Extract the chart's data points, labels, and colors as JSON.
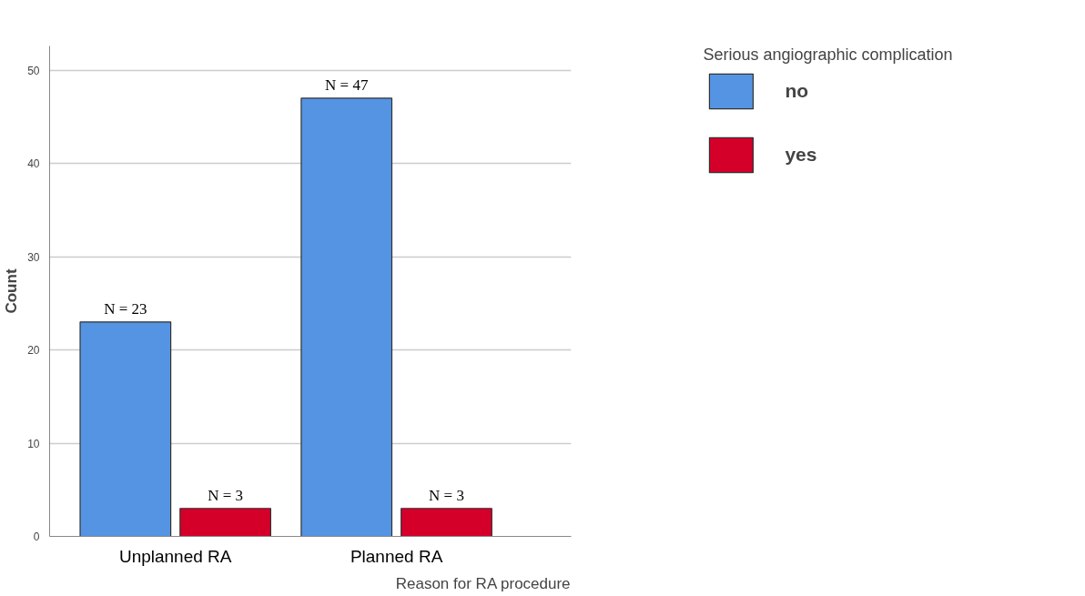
{
  "chart_data": {
    "type": "bar",
    "xlabel": "Reason for RA procedure",
    "ylabel": "Count",
    "legend_title": "Serious angiographic complication",
    "categories": [
      "Unplanned RA",
      "Planned RA"
    ],
    "series": [
      {
        "name": "no",
        "color": "#5494e3",
        "values": [
          23,
          47
        ],
        "value_labels": [
          "N = 23",
          "N = 47"
        ]
      },
      {
        "name": "yes",
        "color": "#d4002a",
        "values": [
          3,
          3
        ],
        "value_labels": [
          "N = 3",
          "N = 3"
        ]
      }
    ],
    "ylim": [
      0,
      52.6
    ],
    "yticks": [
      0,
      10,
      20,
      30,
      40,
      50
    ],
    "grid": "y",
    "legend": "top right"
  }
}
